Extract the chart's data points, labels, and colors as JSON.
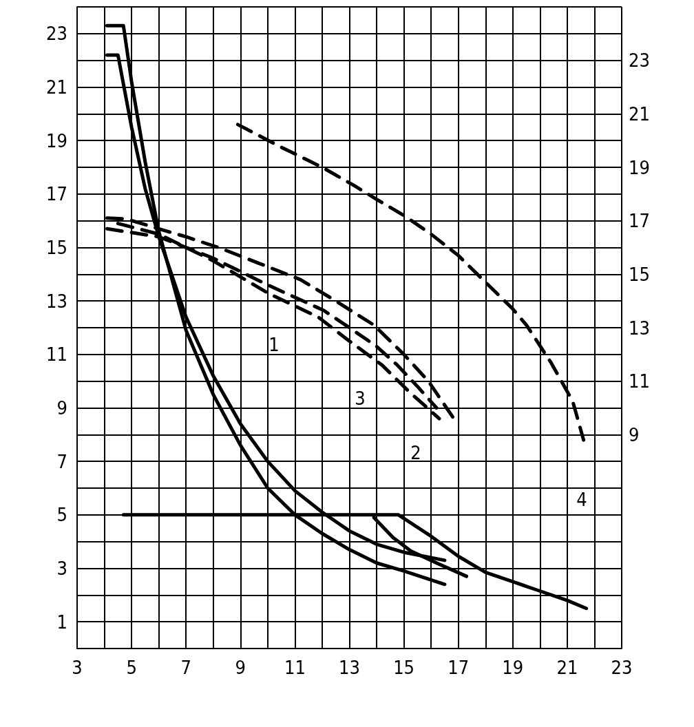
{
  "chart_data": {
    "type": "line",
    "xlim": [
      3,
      23
    ],
    "xticks": [
      3,
      5,
      7,
      9,
      11,
      13,
      15,
      17,
      19,
      21,
      23
    ],
    "ylim": [
      0,
      24
    ],
    "yticks": [
      1,
      3,
      5,
      7,
      9,
      11,
      13,
      15,
      17,
      19,
      21,
      23
    ],
    "y2lim": [
      1,
      25
    ],
    "y2ticks": [
      9,
      11,
      13,
      15,
      17,
      19,
      21,
      23
    ],
    "grid": true,
    "marker": "none",
    "series": [
      {
        "color": "#000000",
        "line_style": "solid",
        "x": [
          4.1,
          4.7,
          5.0,
          5.5,
          6.0,
          7,
          8,
          9,
          10,
          11,
          12,
          13,
          14,
          15,
          16.5
        ],
        "values": [
          23.3,
          23.3,
          21.2,
          18.2,
          15.6,
          11.9,
          9.5,
          7.6,
          6.0,
          5.0,
          4.3,
          3.7,
          3.2,
          2.9,
          2.4
        ]
      },
      {
        "color": "#000000",
        "line_style": "solid",
        "x": [
          4.1,
          4.5,
          5.0,
          5.5,
          6.0,
          7,
          8,
          9,
          10,
          11,
          12,
          13,
          14,
          15,
          16.5
        ],
        "values": [
          22.2,
          22.2,
          19.5,
          17.2,
          15.4,
          12.4,
          10.2,
          8.4,
          7.0,
          5.9,
          5.1,
          4.4,
          3.9,
          3.6,
          3.3
        ]
      },
      {
        "color": "#000000",
        "line_style": "solid",
        "x": [
          4.7,
          14.8,
          16,
          17,
          18,
          19,
          20,
          21,
          21.7
        ],
        "values": [
          5.0,
          5.0,
          4.2,
          3.45,
          2.85,
          2.5,
          2.15,
          1.8,
          1.5
        ]
      },
      {
        "color": "#000000",
        "line_style": "solid",
        "x": [
          13.9,
          14.6,
          15.25,
          16.2,
          17.3
        ],
        "values": [
          4.9,
          4.15,
          3.65,
          3.2,
          2.7
        ]
      },
      {
        "color": "#000000",
        "line_style": "dashed",
        "x": [
          4.1,
          4.8,
          6,
          7,
          8.3,
          9.7,
          11.2,
          12.5,
          13.9,
          15,
          15.9,
          16.9
        ],
        "values": [
          16.1,
          16.07,
          15.7,
          15.4,
          14.96,
          14.4,
          13.8,
          13.0,
          12.1,
          11.0,
          10.0,
          8.5
        ]
      },
      {
        "color": "#000000",
        "line_style": "dashed",
        "x": [
          4.1,
          6,
          8,
          10,
          12.05,
          13,
          14,
          14.76,
          15.5,
          16.2
        ],
        "values": [
          15.7,
          15.4,
          14.6,
          13.6,
          12.65,
          12.0,
          11.3,
          10.6,
          9.8,
          9.0
        ]
      },
      {
        "color": "#000000",
        "line_style": "dashed",
        "x": [
          4.5,
          6,
          8,
          10,
          11.85,
          13,
          14.2,
          15.2,
          16.3
        ],
        "values": [
          15.9,
          15.5,
          14.5,
          13.3,
          12.4,
          11.5,
          10.6,
          9.6,
          8.6
        ]
      },
      {
        "color": "#000000",
        "line_style": "dashed",
        "x": [
          8.9,
          10.4,
          12,
          13.2,
          14,
          15,
          16,
          17,
          18,
          19,
          19.5,
          20.4,
          21.2,
          21.6
        ],
        "values": [
          19.6,
          18.8,
          18.0,
          17.3,
          16.8,
          16.2,
          15.5,
          14.7,
          13.7,
          12.7,
          12.1,
          10.7,
          9.25,
          7.8
        ]
      }
    ],
    "annotations": [
      "1",
      "3",
      "2",
      "4"
    ]
  }
}
